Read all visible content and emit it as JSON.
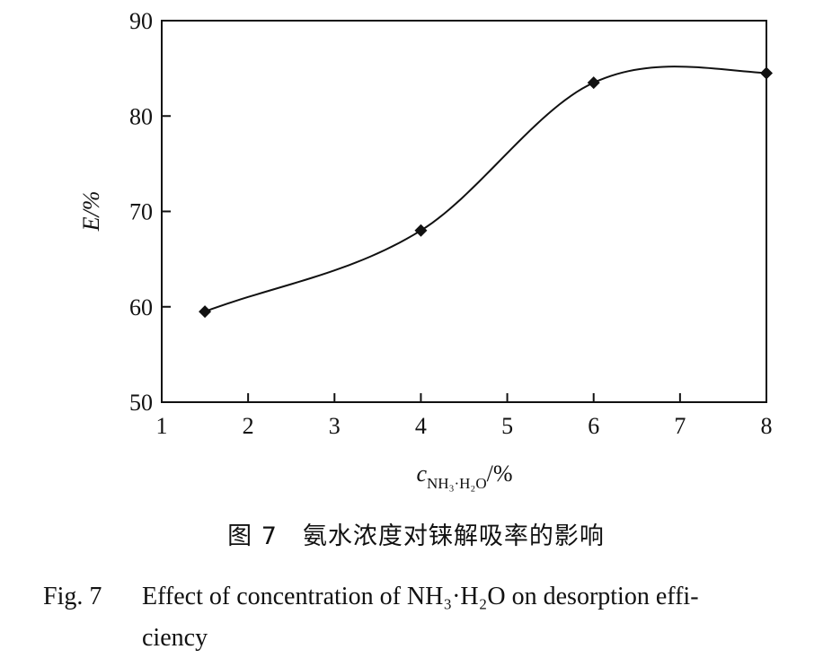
{
  "chart_data": {
    "type": "line",
    "ylabel": "E/%",
    "xlabel": {
      "prefix": "c",
      "subscript": "NH₃·H₂O",
      "suffix": "/%"
    },
    "xlim": [
      1,
      8
    ],
    "ylim": [
      50,
      90
    ],
    "xticks": [
      "1",
      "2",
      "3",
      "4",
      "5",
      "6",
      "7",
      "8"
    ],
    "yticks": [
      "50",
      "60",
      "70",
      "80",
      "90"
    ],
    "grid": false,
    "marker": "diamond",
    "smooth": true,
    "series": [
      {
        "x": [
          1.5,
          4,
          6,
          8
        ],
        "y": [
          59.5,
          68,
          83.5,
          84.5
        ]
      }
    ]
  },
  "caption": {
    "cn": "图 7　氨水浓度对铼解吸率的影响",
    "en_fig": "Fig. 7",
    "en_line1": "Effect of concentration of NH₃·H₂O on desorption effi-",
    "en_line2": "ciency"
  },
  "colors": {
    "ink": "#111111",
    "background": "#ffffff"
  }
}
